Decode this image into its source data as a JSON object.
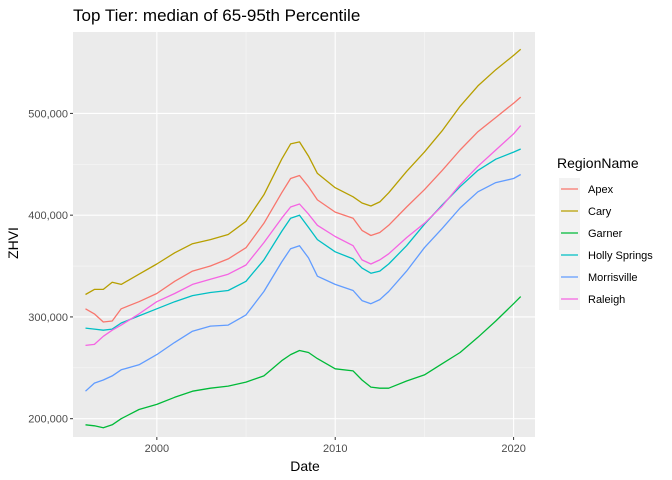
{
  "chart_data": {
    "type": "line",
    "title": "Top Tier: median of 65-95th Percentile",
    "xlabel": "Date",
    "ylabel": "ZHVI",
    "xlim": [
      1995.3,
      2021.2
    ],
    "ylim": [
      182000,
      580000
    ],
    "x_ticks": [
      2000,
      2010,
      2020
    ],
    "x_tick_labels": [
      "2000",
      "2010",
      "2020"
    ],
    "y_ticks": [
      200000,
      300000,
      400000,
      500000
    ],
    "y_tick_labels": [
      "200,000",
      "300,000",
      "400,000",
      "500,000"
    ],
    "grid": true,
    "legend": {
      "title": "RegionName",
      "position": "right"
    },
    "series": [
      {
        "name": "Apex",
        "color": "#F8766D",
        "x": [
          1996.0,
          1996.5,
          1997.0,
          1997.5,
          1998.0,
          1999.0,
          2000.0,
          2001.0,
          2002.0,
          2003.0,
          2004.0,
          2005.0,
          2006.0,
          2007.0,
          2007.5,
          2008.0,
          2008.5,
          2009.0,
          2010.0,
          2011.0,
          2011.5,
          2012.0,
          2012.5,
          2013.0,
          2014.0,
          2015.0,
          2016.0,
          2017.0,
          2018.0,
          2019.0,
          2020.0,
          2020.4
        ],
        "y": [
          308000,
          303000,
          295000,
          296000,
          308000,
          315000,
          323000,
          335000,
          345000,
          350000,
          357000,
          368000,
          392000,
          422000,
          436000,
          439000,
          428000,
          415000,
          403000,
          397000,
          385000,
          380000,
          383000,
          390000,
          408000,
          425000,
          444000,
          464000,
          482000,
          496000,
          510000,
          516000
        ]
      },
      {
        "name": "Cary",
        "color": "#B79F00",
        "x": [
          1996.0,
          1996.5,
          1997.0,
          1997.5,
          1998.0,
          1999.0,
          2000.0,
          2001.0,
          2002.0,
          2003.0,
          2004.0,
          2005.0,
          2006.0,
          2007.0,
          2007.5,
          2008.0,
          2008.5,
          2009.0,
          2010.0,
          2011.0,
          2011.5,
          2012.0,
          2012.5,
          2013.0,
          2014.0,
          2015.0,
          2016.0,
          2017.0,
          2018.0,
          2019.0,
          2020.0,
          2020.4
        ],
        "y": [
          322000,
          327000,
          327000,
          334000,
          332000,
          342000,
          352000,
          363000,
          372000,
          376000,
          381000,
          394000,
          420000,
          455000,
          470000,
          472000,
          458000,
          441000,
          427000,
          418000,
          412000,
          409000,
          413000,
          422000,
          443000,
          462000,
          483000,
          507000,
          527000,
          543000,
          557000,
          563000
        ]
      },
      {
        "name": "Garner",
        "color": "#00BA38",
        "x": [
          1996.0,
          1996.5,
          1997.0,
          1997.5,
          1998.0,
          1999.0,
          2000.0,
          2001.0,
          2002.0,
          2003.0,
          2004.0,
          2005.0,
          2006.0,
          2007.0,
          2007.5,
          2008.0,
          2008.5,
          2009.0,
          2010.0,
          2011.0,
          2011.5,
          2012.0,
          2012.5,
          2013.0,
          2014.0,
          2015.0,
          2016.0,
          2017.0,
          2018.0,
          2019.0,
          2020.0,
          2020.4
        ],
        "y": [
          194000,
          193000,
          191000,
          194000,
          200000,
          209000,
          214000,
          221000,
          227000,
          230000,
          232000,
          236000,
          242000,
          257000,
          263000,
          267000,
          265000,
          259000,
          249000,
          247000,
          238000,
          231000,
          230000,
          230000,
          237000,
          243000,
          254000,
          265000,
          280000,
          296000,
          313000,
          320000
        ]
      },
      {
        "name": "Holly Springs",
        "color": "#00BFC4",
        "x": [
          1996.0,
          1996.5,
          1997.0,
          1997.5,
          1998.0,
          1999.0,
          2000.0,
          2001.0,
          2002.0,
          2003.0,
          2004.0,
          2005.0,
          2006.0,
          2007.0,
          2007.5,
          2008.0,
          2008.5,
          2009.0,
          2010.0,
          2011.0,
          2011.5,
          2012.0,
          2012.5,
          2013.0,
          2014.0,
          2015.0,
          2016.0,
          2017.0,
          2018.0,
          2019.0,
          2020.0,
          2020.4
        ],
        "y": [
          289000,
          288000,
          287000,
          288000,
          294000,
          301000,
          308000,
          315000,
          321000,
          324000,
          326000,
          335000,
          356000,
          384000,
          397000,
          400000,
          388000,
          376000,
          364000,
          357000,
          348000,
          343000,
          345000,
          352000,
          370000,
          391000,
          410000,
          428000,
          444000,
          455000,
          462000,
          465000
        ]
      },
      {
        "name": "Morrisville",
        "color": "#619CFF",
        "x": [
          1996.0,
          1996.5,
          1997.0,
          1997.5,
          1998.0,
          1999.0,
          2000.0,
          2001.0,
          2002.0,
          2003.0,
          2004.0,
          2005.0,
          2006.0,
          2007.0,
          2007.5,
          2008.0,
          2008.5,
          2009.0,
          2010.0,
          2011.0,
          2011.5,
          2012.0,
          2012.5,
          2013.0,
          2014.0,
          2015.0,
          2016.0,
          2017.0,
          2018.0,
          2019.0,
          2020.0,
          2020.4
        ],
        "y": [
          227000,
          235000,
          238000,
          242000,
          248000,
          253000,
          263000,
          275000,
          286000,
          291000,
          292000,
          302000,
          325000,
          354000,
          367000,
          370000,
          358000,
          340000,
          332000,
          326000,
          316000,
          313000,
          317000,
          325000,
          345000,
          368000,
          387000,
          407000,
          423000,
          432000,
          436000,
          440000
        ]
      },
      {
        "name": "Raleigh",
        "color": "#F564E3",
        "x": [
          1996.0,
          1996.5,
          1997.0,
          1997.5,
          1998.0,
          1999.0,
          2000.0,
          2001.0,
          2002.0,
          2003.0,
          2004.0,
          2005.0,
          2006.0,
          2007.0,
          2007.5,
          2008.0,
          2008.5,
          2009.0,
          2010.0,
          2011.0,
          2011.5,
          2012.0,
          2012.5,
          2013.0,
          2014.0,
          2015.0,
          2016.0,
          2017.0,
          2018.0,
          2019.0,
          2020.0,
          2020.4
        ],
        "y": [
          272000,
          273000,
          281000,
          287000,
          292000,
          303000,
          315000,
          323000,
          332000,
          337000,
          342000,
          351000,
          373000,
          397000,
          408000,
          411000,
          401000,
          390000,
          379000,
          370000,
          356000,
          352000,
          356000,
          362000,
          378000,
          392000,
          409000,
          430000,
          448000,
          464000,
          480000,
          488000
        ]
      }
    ]
  }
}
